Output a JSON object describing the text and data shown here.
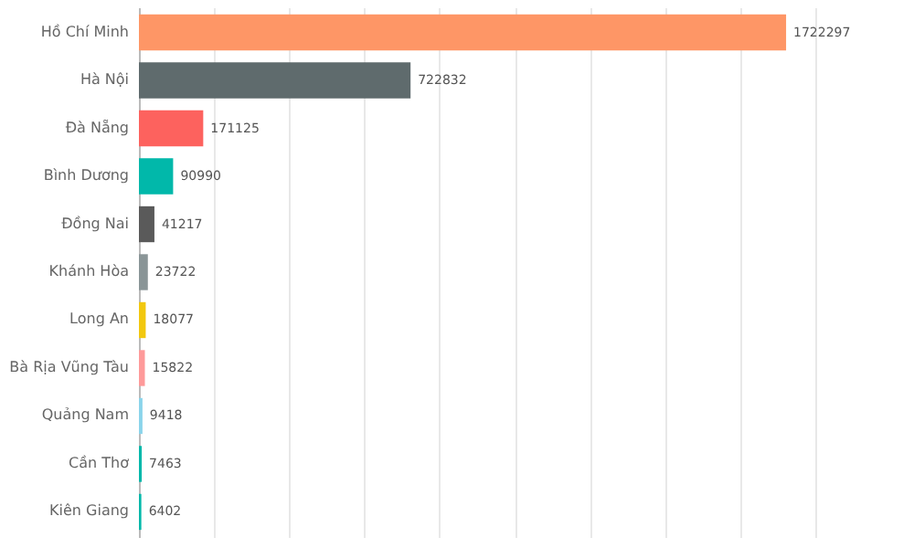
{
  "chart_data": {
    "type": "bar",
    "orientation": "horizontal",
    "categories": [
      "Hồ Chí Minh",
      "Hà Nội",
      "Đà Nẵng",
      "Bình Dương",
      "Đồng Nai",
      "Khánh Hòa",
      "Long An",
      "Bà Rịa Vũng Tàu",
      "Quảng Nam",
      "Cần Thơ",
      "Kiên Giang"
    ],
    "values": [
      1722297,
      722832,
      171125,
      90990,
      41217,
      23722,
      18077,
      15822,
      9418,
      7463,
      6402
    ],
    "colors": [
      "#fe9666",
      "#5f6b6d",
      "#fd625e",
      "#01b8aa",
      "#5a5a5a",
      "#8a9597",
      "#f2c80f",
      "#fe9a9a",
      "#8ad4eb",
      "#01b8aa",
      "#01b8aa"
    ],
    "tick_labels": "y",
    "grid": "x",
    "data_labels": true
  }
}
